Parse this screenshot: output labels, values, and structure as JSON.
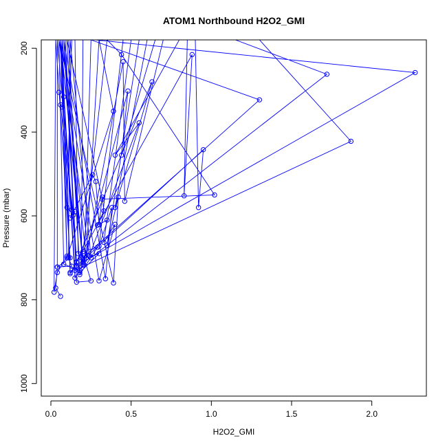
{
  "chart_data": {
    "type": "line",
    "title": "ATOM1 Northbound H2O2_GMI",
    "xlabel": "H2O2_GMI",
    "ylabel": "Pressure (mbar)",
    "xlim": [
      -0.06,
      2.34
    ],
    "ylim": [
      1030,
      180
    ],
    "y_reversed": true,
    "x_ticks": [
      0,
      0.5,
      1,
      1.5,
      2
    ],
    "x_tick_labels": [
      "0.0",
      "0.5",
      "1.0",
      "1.5",
      "2.0"
    ],
    "y_ticks": [
      200,
      400,
      600,
      800,
      1000
    ],
    "y_tick_labels": [
      "200",
      "400",
      "600",
      "800",
      "1000"
    ],
    "grid": false,
    "series": [
      {
        "line_color": "#0000ff",
        "marker": "open-circle",
        "points": [
          [
            0.06,
            792
          ],
          [
            0.03,
            772
          ],
          [
            0.04,
            722
          ],
          [
            0.12,
            700
          ],
          [
            0.03,
            180
          ],
          [
            0.02,
            782
          ],
          [
            0.04,
            735
          ],
          [
            0.1,
            696
          ],
          [
            0.07,
            180
          ],
          [
            0.04,
            180
          ],
          [
            0.04,
            722
          ],
          [
            0.13,
            720
          ],
          [
            0.11,
            700
          ],
          [
            0.12,
            180
          ],
          [
            0.05,
            180
          ],
          [
            0.08,
            715
          ],
          [
            0.18,
            730
          ],
          [
            0.16,
            710
          ],
          [
            0.08,
            180
          ],
          [
            0.07,
            180
          ],
          [
            0.12,
            735
          ],
          [
            0.2,
            712
          ],
          [
            0.17,
            690
          ],
          [
            0.15,
            180
          ],
          [
            0.06,
            180
          ],
          [
            0.15,
            748
          ],
          [
            0.2,
            718
          ],
          [
            0.19,
            700
          ],
          [
            0.2,
            180
          ],
          [
            0.09,
            180
          ],
          [
            0.16,
            758
          ],
          [
            0.25,
            755
          ],
          [
            0.21,
            705
          ],
          [
            0.25,
            180
          ],
          [
            0.1,
            180
          ],
          [
            0.18,
            735
          ],
          [
            0.3,
            690
          ],
          [
            0.22,
            700
          ],
          [
            0.3,
            180
          ],
          [
            0.11,
            180
          ],
          [
            0.18,
            740
          ],
          [
            0.29,
            675
          ],
          [
            0.2,
            685
          ],
          [
            0.35,
            180
          ],
          [
            0.08,
            180
          ],
          [
            0.34,
            750
          ],
          [
            0.38,
            580
          ],
          [
            0.3,
            672
          ],
          [
            0.45,
            180
          ],
          [
            0.06,
            180
          ],
          [
            0.3,
            755
          ],
          [
            0.4,
            620
          ],
          [
            0.33,
            663
          ],
          [
            0.5,
            180
          ],
          [
            0.05,
            180
          ],
          [
            0.39,
            760
          ],
          [
            0.42,
            555
          ],
          [
            0.35,
            670
          ],
          [
            0.55,
            180
          ],
          [
            0.04,
            180
          ],
          [
            0.16,
            710
          ],
          [
            0.63,
            280
          ],
          [
            0.4,
            580
          ],
          [
            0.6,
            180
          ],
          [
            0.06,
            180
          ],
          [
            0.2,
            715
          ],
          [
            0.48,
            302
          ],
          [
            0.44,
            455
          ],
          [
            0.65,
            180
          ],
          [
            0.07,
            180
          ],
          [
            0.22,
            700
          ],
          [
            0.45,
            232
          ],
          [
            0.46,
            565
          ],
          [
            0.7,
            180
          ],
          [
            0.05,
            180
          ],
          [
            0.24,
            695
          ],
          [
            0.55,
            378
          ],
          [
            0.4,
            455
          ],
          [
            0.8,
            180
          ],
          [
            0.06,
            180
          ],
          [
            0.12,
            738
          ],
          [
            0.88,
            215
          ],
          [
            0.83,
            552
          ],
          [
            0.85,
            180
          ],
          [
            0.09,
            180
          ],
          [
            0.16,
            720
          ],
          [
            0.95,
            442
          ],
          [
            0.92,
            580
          ],
          [
            0.9,
            180
          ],
          [
            0.06,
            180
          ],
          [
            0.2,
            700
          ],
          [
            1.3,
            323
          ],
          [
            0.25,
            180
          ],
          [
            0.1,
            180
          ],
          [
            0.32,
            560
          ],
          [
            1.02,
            550
          ],
          [
            0.44,
            215
          ],
          [
            0.35,
            180
          ],
          [
            0.12,
            180
          ],
          [
            0.25,
            700
          ],
          [
            1.72,
            262
          ],
          [
            1.15,
            180
          ],
          [
            0.08,
            180
          ],
          [
            0.2,
            710
          ],
          [
            2.27,
            258
          ],
          [
            0.28,
            180
          ],
          [
            0.06,
            180
          ],
          [
            0.15,
            730
          ],
          [
            1.87,
            422
          ],
          [
            1.3,
            180
          ],
          [
            0.06,
            180
          ],
          [
            0.1,
            700
          ],
          [
            0.39,
            350
          ],
          [
            0.3,
            180
          ],
          [
            0.13,
            180
          ],
          [
            0.1,
            580
          ],
          [
            0.14,
            598
          ],
          [
            0.05,
            305
          ],
          [
            0.06,
            335
          ],
          [
            0.07,
            340
          ],
          [
            0.08,
            316
          ],
          [
            0.13,
            585
          ],
          [
            0.15,
            590
          ],
          [
            0.12,
            605
          ],
          [
            0.26,
            502
          ],
          [
            0.28,
            518
          ],
          [
            0.3,
            620
          ],
          [
            0.32,
            555
          ],
          [
            0.33,
            588
          ],
          [
            0.29,
            622
          ],
          [
            0.35,
            610
          ]
        ]
      }
    ]
  }
}
